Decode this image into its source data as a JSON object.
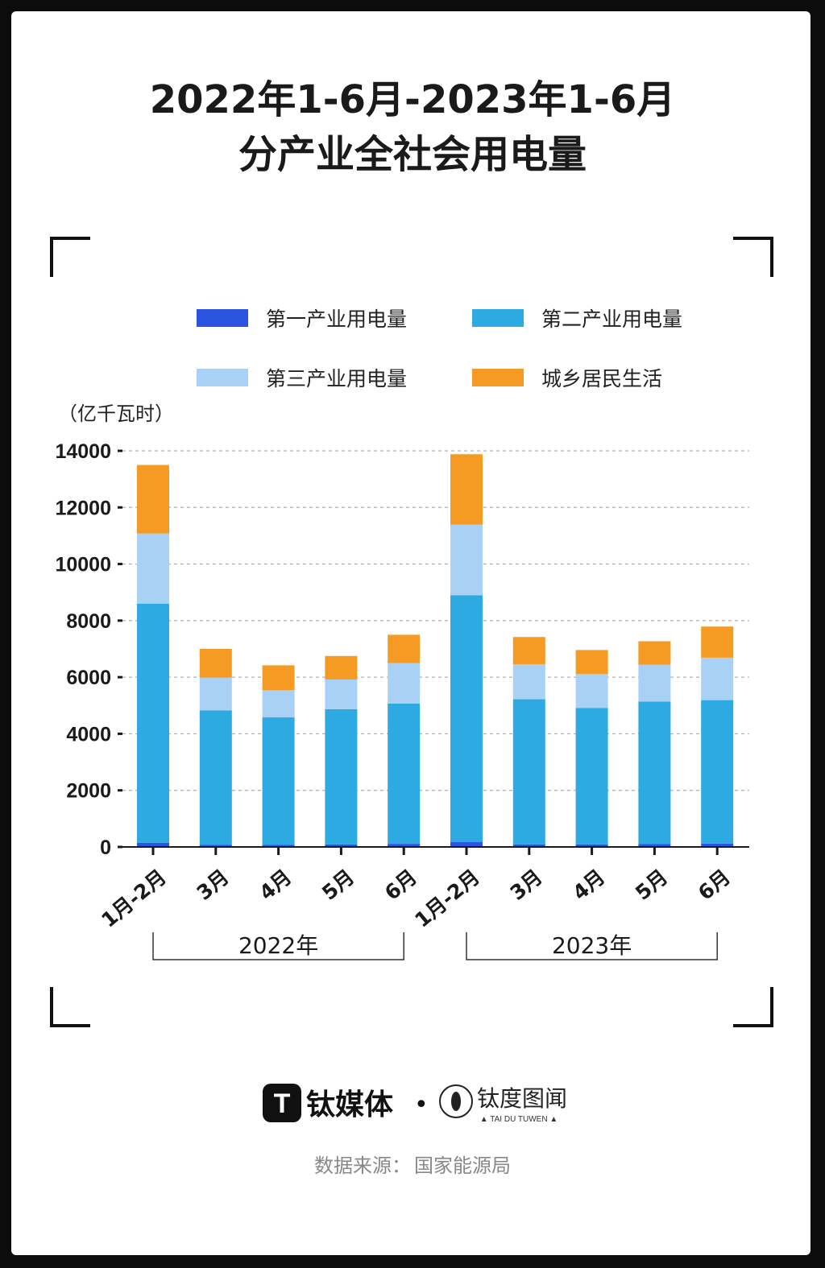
{
  "title": {
    "line1": "2022年1-6月-2023年1-6月",
    "line2": "分产业全社会用电量"
  },
  "unit_label": "（亿千瓦时）",
  "colors": {
    "primary": "#2b54e0",
    "secondary": "#2eaae3",
    "tertiary": "#a9d0f5",
    "residential": "#f59a23",
    "grid": "#b0b0b0",
    "axis": "#1a1a1a"
  },
  "legend": [
    {
      "label": "第一产业用电量",
      "color_key": "primary"
    },
    {
      "label": "第二产业用电量",
      "color_key": "secondary"
    },
    {
      "label": "第三产业用电量",
      "color_key": "tertiary"
    },
    {
      "label": "城乡居民生活",
      "color_key": "residential"
    }
  ],
  "chart_data": {
    "type": "bar",
    "stacked": true,
    "categories": [
      "1月-2月",
      "3月",
      "4月",
      "5月",
      "6月",
      "1月-2月",
      "3月",
      "4月",
      "5月",
      "6月"
    ],
    "groups": [
      {
        "label": "2022年",
        "start": 0,
        "end": 4
      },
      {
        "label": "2023年",
        "start": 5,
        "end": 9
      }
    ],
    "series": [
      {
        "name": "第一产业用电量",
        "values": [
          150,
          80,
          80,
          90,
          110,
          170,
          90,
          90,
          100,
          120
        ]
      },
      {
        "name": "第二产业用电量",
        "values": [
          8450,
          4750,
          4500,
          4780,
          4960,
          8730,
          5130,
          4820,
          5040,
          5070
        ]
      },
      {
        "name": "第三产业用电量",
        "values": [
          2480,
          1150,
          960,
          1050,
          1430,
          2490,
          1240,
          1200,
          1300,
          1500
        ]
      },
      {
        "name": "城乡居民生活",
        "values": [
          2420,
          1020,
          880,
          830,
          1000,
          2490,
          960,
          850,
          830,
          1100
        ]
      }
    ],
    "ylim": [
      0,
      14000
    ],
    "yticks": [
      0,
      2000,
      4000,
      6000,
      8000,
      10000,
      12000,
      14000
    ],
    "grid": true,
    "legend_position": "top"
  },
  "brand": {
    "logo_mark": "T",
    "name": "钛媒体",
    "separator": "•",
    "partner_name": "钛度图闻",
    "partner_sub": "▲ TAI DU TUWEN ▲"
  },
  "source": {
    "label": "数据来源：",
    "value": "国家能源局"
  }
}
